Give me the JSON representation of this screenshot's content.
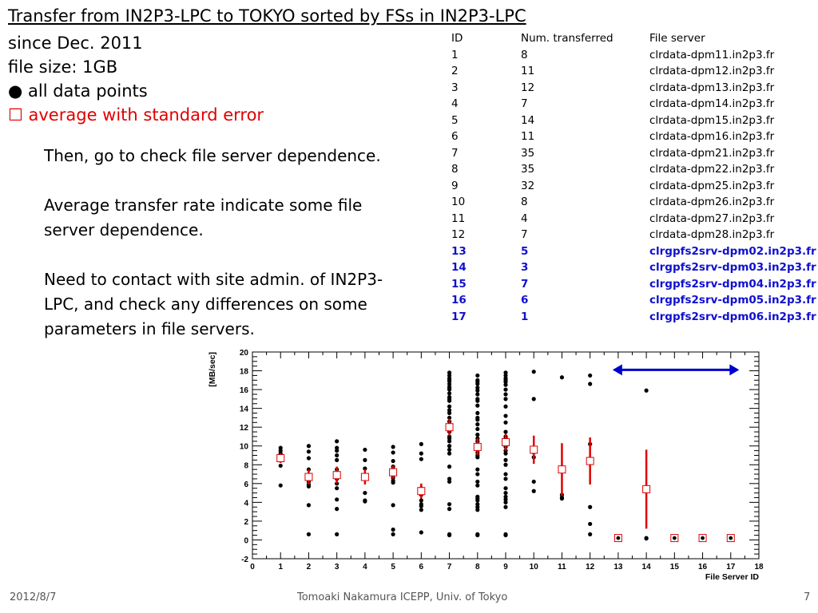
{
  "slide": {
    "title": "Transfer from IN2P3-LPC to TOKYO sorted by FSs in IN2P3-LPC",
    "since": "since Dec. 2011",
    "file_size": "file size: 1GB",
    "legend_points_marker": "●",
    "legend_points": "all data points",
    "legend_avg_marker": "☐",
    "legend_avg": "average with standard error",
    "body_paragraphs": [
      "Then, go to check file server dependence.",
      "Average transfer rate indicate some file server dependence.",
      "Need to contact with site admin. of IN2P3-LPC, and check any differences on some parameters in file servers."
    ]
  },
  "table": {
    "headers": [
      "ID",
      "Num. transferred",
      "File server"
    ],
    "rows": [
      [
        "1",
        "8",
        "clrdata-dpm11.in2p3.fr"
      ],
      [
        "2",
        "11",
        "clrdata-dpm12.in2p3.fr"
      ],
      [
        "3",
        "12",
        "clrdata-dpm13.in2p3.fr"
      ],
      [
        "4",
        "7",
        "clrdata-dpm14.in2p3.fr"
      ],
      [
        "5",
        "14",
        "clrdata-dpm15.in2p3.fr"
      ],
      [
        "6",
        "11",
        "clrdata-dpm16.in2p3.fr"
      ],
      [
        "7",
        "35",
        "clrdata-dpm21.in2p3.fr"
      ],
      [
        "8",
        "35",
        "clrdata-dpm22.in2p3.fr"
      ],
      [
        "9",
        "32",
        "clrdata-dpm25.in2p3.fr"
      ],
      [
        "10",
        "8",
        "clrdata-dpm26.in2p3.fr"
      ],
      [
        "11",
        "4",
        "clrdata-dpm27.in2p3.fr"
      ],
      [
        "12",
        "7",
        "clrdata-dpm28.in2p3.fr"
      ],
      [
        "13",
        "5",
        "clrgpfs2srv-dpm02.in2p3.fr"
      ],
      [
        "14",
        "3",
        "clrgpfs2srv-dpm03.in2p3.fr"
      ],
      [
        "15",
        "7",
        "clrgpfs2srv-dpm04.in2p3.fr"
      ],
      [
        "16",
        "6",
        "clrgpfs2srv-dpm05.in2p3.fr"
      ],
      [
        "17",
        "1",
        "clrgpfs2srv-dpm06.in2p3.fr"
      ]
    ],
    "highlight_ids": [
      "13",
      "14",
      "15",
      "16",
      "17"
    ],
    "highlight_color": "#1010d0"
  },
  "chart_data": {
    "type": "scatter",
    "xlabel": "File Server ID",
    "ylabel": "[MB/sec]",
    "xlim": [
      0,
      18
    ],
    "ylim": [
      -2,
      20
    ],
    "x_ticks": [
      0,
      1,
      2,
      3,
      4,
      5,
      6,
      7,
      8,
      9,
      10,
      11,
      12,
      13,
      14,
      15,
      16,
      17,
      18
    ],
    "y_ticks": [
      -2,
      0,
      2,
      4,
      6,
      8,
      10,
      12,
      14,
      16,
      18,
      20
    ],
    "grid": false,
    "series": [
      {
        "marker": "filled-circle",
        "color": "#000000",
        "points": [
          [
            1,
            9.8
          ],
          [
            1,
            9.5
          ],
          [
            1,
            9.2
          ],
          [
            1,
            9.0
          ],
          [
            1,
            8.8
          ],
          [
            1,
            7.9
          ],
          [
            1,
            5.8
          ],
          [
            1,
            8.5
          ],
          [
            2,
            10.0
          ],
          [
            2,
            9.4
          ],
          [
            2,
            8.7
          ],
          [
            2,
            7.5
          ],
          [
            2,
            6.8
          ],
          [
            2,
            6.5
          ],
          [
            2,
            6.2
          ],
          [
            2,
            5.9
          ],
          [
            2,
            5.7
          ],
          [
            2,
            3.7
          ],
          [
            2,
            0.6
          ],
          [
            3,
            10.5
          ],
          [
            3,
            9.8
          ],
          [
            3,
            9.5
          ],
          [
            3,
            9.0
          ],
          [
            3,
            8.5
          ],
          [
            3,
            7.5
          ],
          [
            3,
            6.5
          ],
          [
            3,
            6.0
          ],
          [
            3,
            5.5
          ],
          [
            3,
            4.3
          ],
          [
            3,
            3.3
          ],
          [
            3,
            0.6
          ],
          [
            4,
            9.6
          ],
          [
            4,
            8.5
          ],
          [
            4,
            7.6
          ],
          [
            4,
            6.8
          ],
          [
            4,
            5.0
          ],
          [
            4,
            4.2
          ],
          [
            4,
            4.1
          ],
          [
            5,
            9.9
          ],
          [
            5,
            9.3
          ],
          [
            5,
            8.4
          ],
          [
            5,
            7.8
          ],
          [
            5,
            7.5
          ],
          [
            5,
            7.2
          ],
          [
            5,
            6.9
          ],
          [
            5,
            6.6
          ],
          [
            5,
            6.3
          ],
          [
            5,
            6.1
          ],
          [
            5,
            3.7
          ],
          [
            5,
            1.1
          ],
          [
            5,
            0.6
          ],
          [
            5,
            7.0
          ],
          [
            6,
            10.2
          ],
          [
            6,
            9.2
          ],
          [
            6,
            8.6
          ],
          [
            6,
            5.5
          ],
          [
            6,
            5.3
          ],
          [
            6,
            4.8
          ],
          [
            6,
            4.2
          ],
          [
            6,
            3.8
          ],
          [
            6,
            3.6
          ],
          [
            6,
            3.2
          ],
          [
            6,
            0.8
          ],
          [
            7,
            17.8
          ],
          [
            7,
            17.5
          ],
          [
            7,
            17.2
          ],
          [
            7,
            16.9
          ],
          [
            7,
            16.6
          ],
          [
            7,
            16.3
          ],
          [
            7,
            16.0
          ],
          [
            7,
            15.6
          ],
          [
            7,
            15.2
          ],
          [
            7,
            14.8
          ],
          [
            7,
            14.2
          ],
          [
            7,
            13.5
          ],
          [
            7,
            13.0
          ],
          [
            7,
            12.6
          ],
          [
            7,
            12.2
          ],
          [
            7,
            11.8
          ],
          [
            7,
            11.0
          ],
          [
            7,
            10.5
          ],
          [
            7,
            10.0
          ],
          [
            7,
            9.6
          ],
          [
            7,
            9.2
          ],
          [
            7,
            7.8
          ],
          [
            7,
            6.5
          ],
          [
            7,
            6.2
          ],
          [
            7,
            3.8
          ],
          [
            7,
            3.3
          ],
          [
            7,
            0.6
          ],
          [
            7,
            0.5
          ],
          [
            7,
            12.0
          ],
          [
            7,
            15.0
          ],
          [
            7,
            16.1
          ],
          [
            7,
            17.0
          ],
          [
            7,
            13.8
          ],
          [
            7,
            11.5
          ],
          [
            7,
            10.8
          ],
          [
            8,
            17.5
          ],
          [
            8,
            17.0
          ],
          [
            8,
            16.6
          ],
          [
            8,
            16.2
          ],
          [
            8,
            15.9
          ],
          [
            8,
            15.5
          ],
          [
            8,
            15.0
          ],
          [
            8,
            14.3
          ],
          [
            8,
            13.5
          ],
          [
            8,
            13.0
          ],
          [
            8,
            12.3
          ],
          [
            8,
            11.8
          ],
          [
            8,
            11.2
          ],
          [
            8,
            10.8
          ],
          [
            8,
            10.2
          ],
          [
            8,
            9.7
          ],
          [
            8,
            9.3
          ],
          [
            8,
            8.8
          ],
          [
            8,
            7.0
          ],
          [
            8,
            6.2
          ],
          [
            8,
            5.8
          ],
          [
            8,
            4.6
          ],
          [
            8,
            4.4
          ],
          [
            8,
            4.2
          ],
          [
            8,
            3.8
          ],
          [
            8,
            3.5
          ],
          [
            8,
            3.2
          ],
          [
            8,
            0.6
          ],
          [
            8,
            0.5
          ],
          [
            8,
            16.8
          ],
          [
            8,
            14.8
          ],
          [
            8,
            12.8
          ],
          [
            8,
            10.5
          ],
          [
            8,
            9.0
          ],
          [
            8,
            7.5
          ],
          [
            9,
            17.8
          ],
          [
            9,
            17.5
          ],
          [
            9,
            17.2
          ],
          [
            9,
            16.8
          ],
          [
            9,
            16.5
          ],
          [
            9,
            16.0
          ],
          [
            9,
            15.5
          ],
          [
            9,
            14.2
          ],
          [
            9,
            13.2
          ],
          [
            9,
            12.5
          ],
          [
            9,
            11.0
          ],
          [
            9,
            10.8
          ],
          [
            9,
            10.5
          ],
          [
            9,
            10.2
          ],
          [
            9,
            9.9
          ],
          [
            9,
            9.5
          ],
          [
            9,
            8.5
          ],
          [
            9,
            7.0
          ],
          [
            9,
            6.5
          ],
          [
            9,
            5.5
          ],
          [
            9,
            5.0
          ],
          [
            9,
            4.6
          ],
          [
            9,
            4.3
          ],
          [
            9,
            4.0
          ],
          [
            9,
            3.5
          ],
          [
            9,
            0.6
          ],
          [
            9,
            0.5
          ],
          [
            9,
            17.0
          ],
          [
            9,
            15.0
          ],
          [
            9,
            11.5
          ],
          [
            9,
            9.2
          ],
          [
            9,
            8.0
          ],
          [
            10,
            17.9
          ],
          [
            10,
            15.0
          ],
          [
            10,
            9.8
          ],
          [
            10,
            9.3
          ],
          [
            10,
            8.8
          ],
          [
            10,
            6.2
          ],
          [
            10,
            5.2
          ],
          [
            10,
            9.6
          ],
          [
            11,
            17.3
          ],
          [
            11,
            4.8
          ],
          [
            11,
            4.5
          ],
          [
            11,
            4.4
          ],
          [
            12,
            17.5
          ],
          [
            12,
            16.6
          ],
          [
            12,
            10.2
          ],
          [
            12,
            8.3
          ],
          [
            12,
            3.5
          ],
          [
            12,
            1.7
          ],
          [
            12,
            0.6
          ],
          [
            13,
            0.3
          ],
          [
            13,
            0.2
          ],
          [
            13,
            0.15
          ],
          [
            13,
            0.25
          ],
          [
            13,
            0.3
          ],
          [
            14,
            15.9
          ],
          [
            14,
            0.2
          ],
          [
            14,
            0.15
          ],
          [
            15,
            0.3
          ],
          [
            15,
            0.25
          ],
          [
            15,
            0.2
          ],
          [
            15,
            0.15
          ],
          [
            15,
            0.2
          ],
          [
            15,
            0.3
          ],
          [
            15,
            0.25
          ],
          [
            16,
            0.2
          ],
          [
            16,
            0.2
          ],
          [
            16,
            0.15
          ],
          [
            16,
            0.2
          ],
          [
            16,
            0.15
          ],
          [
            16,
            0.2
          ],
          [
            17,
            0.2
          ]
        ]
      },
      {
        "marker": "open-square-with-error-bar",
        "color": "#e00000",
        "points": [
          {
            "x": 1,
            "y": 8.7,
            "err": 0.5
          },
          {
            "x": 2,
            "y": 6.7,
            "err": 0.8
          },
          {
            "x": 3,
            "y": 6.9,
            "err": 0.9
          },
          {
            "x": 4,
            "y": 6.7,
            "err": 0.8
          },
          {
            "x": 5,
            "y": 7.2,
            "err": 0.7
          },
          {
            "x": 6,
            "y": 5.2,
            "err": 0.8
          },
          {
            "x": 7,
            "y": 12.0,
            "err": 0.9
          },
          {
            "x": 8,
            "y": 9.9,
            "err": 0.9
          },
          {
            "x": 9,
            "y": 10.4,
            "err": 0.9
          },
          {
            "x": 10,
            "y": 9.6,
            "err": 1.5
          },
          {
            "x": 11,
            "y": 7.5,
            "err": 2.8
          },
          {
            "x": 12,
            "y": 8.4,
            "err": 2.5
          },
          {
            "x": 13,
            "y": 0.2,
            "err": 0.05
          },
          {
            "x": 14,
            "y": 5.4,
            "err": 4.2
          },
          {
            "x": 15,
            "y": 0.2,
            "err": 0.05
          },
          {
            "x": 16,
            "y": 0.2,
            "err": 0.05
          },
          {
            "x": 17,
            "y": 0.2,
            "err": 0.0
          }
        ]
      }
    ],
    "annotation": {
      "type": "double-arrow",
      "x_from": 12.8,
      "x_to": 17.3,
      "y": 18.1,
      "color": "#0000cc"
    }
  },
  "footer": {
    "date": "2012/8/7",
    "author": "Tomoaki Nakamura     ICEPP, Univ. of Tokyo",
    "page": "7"
  }
}
